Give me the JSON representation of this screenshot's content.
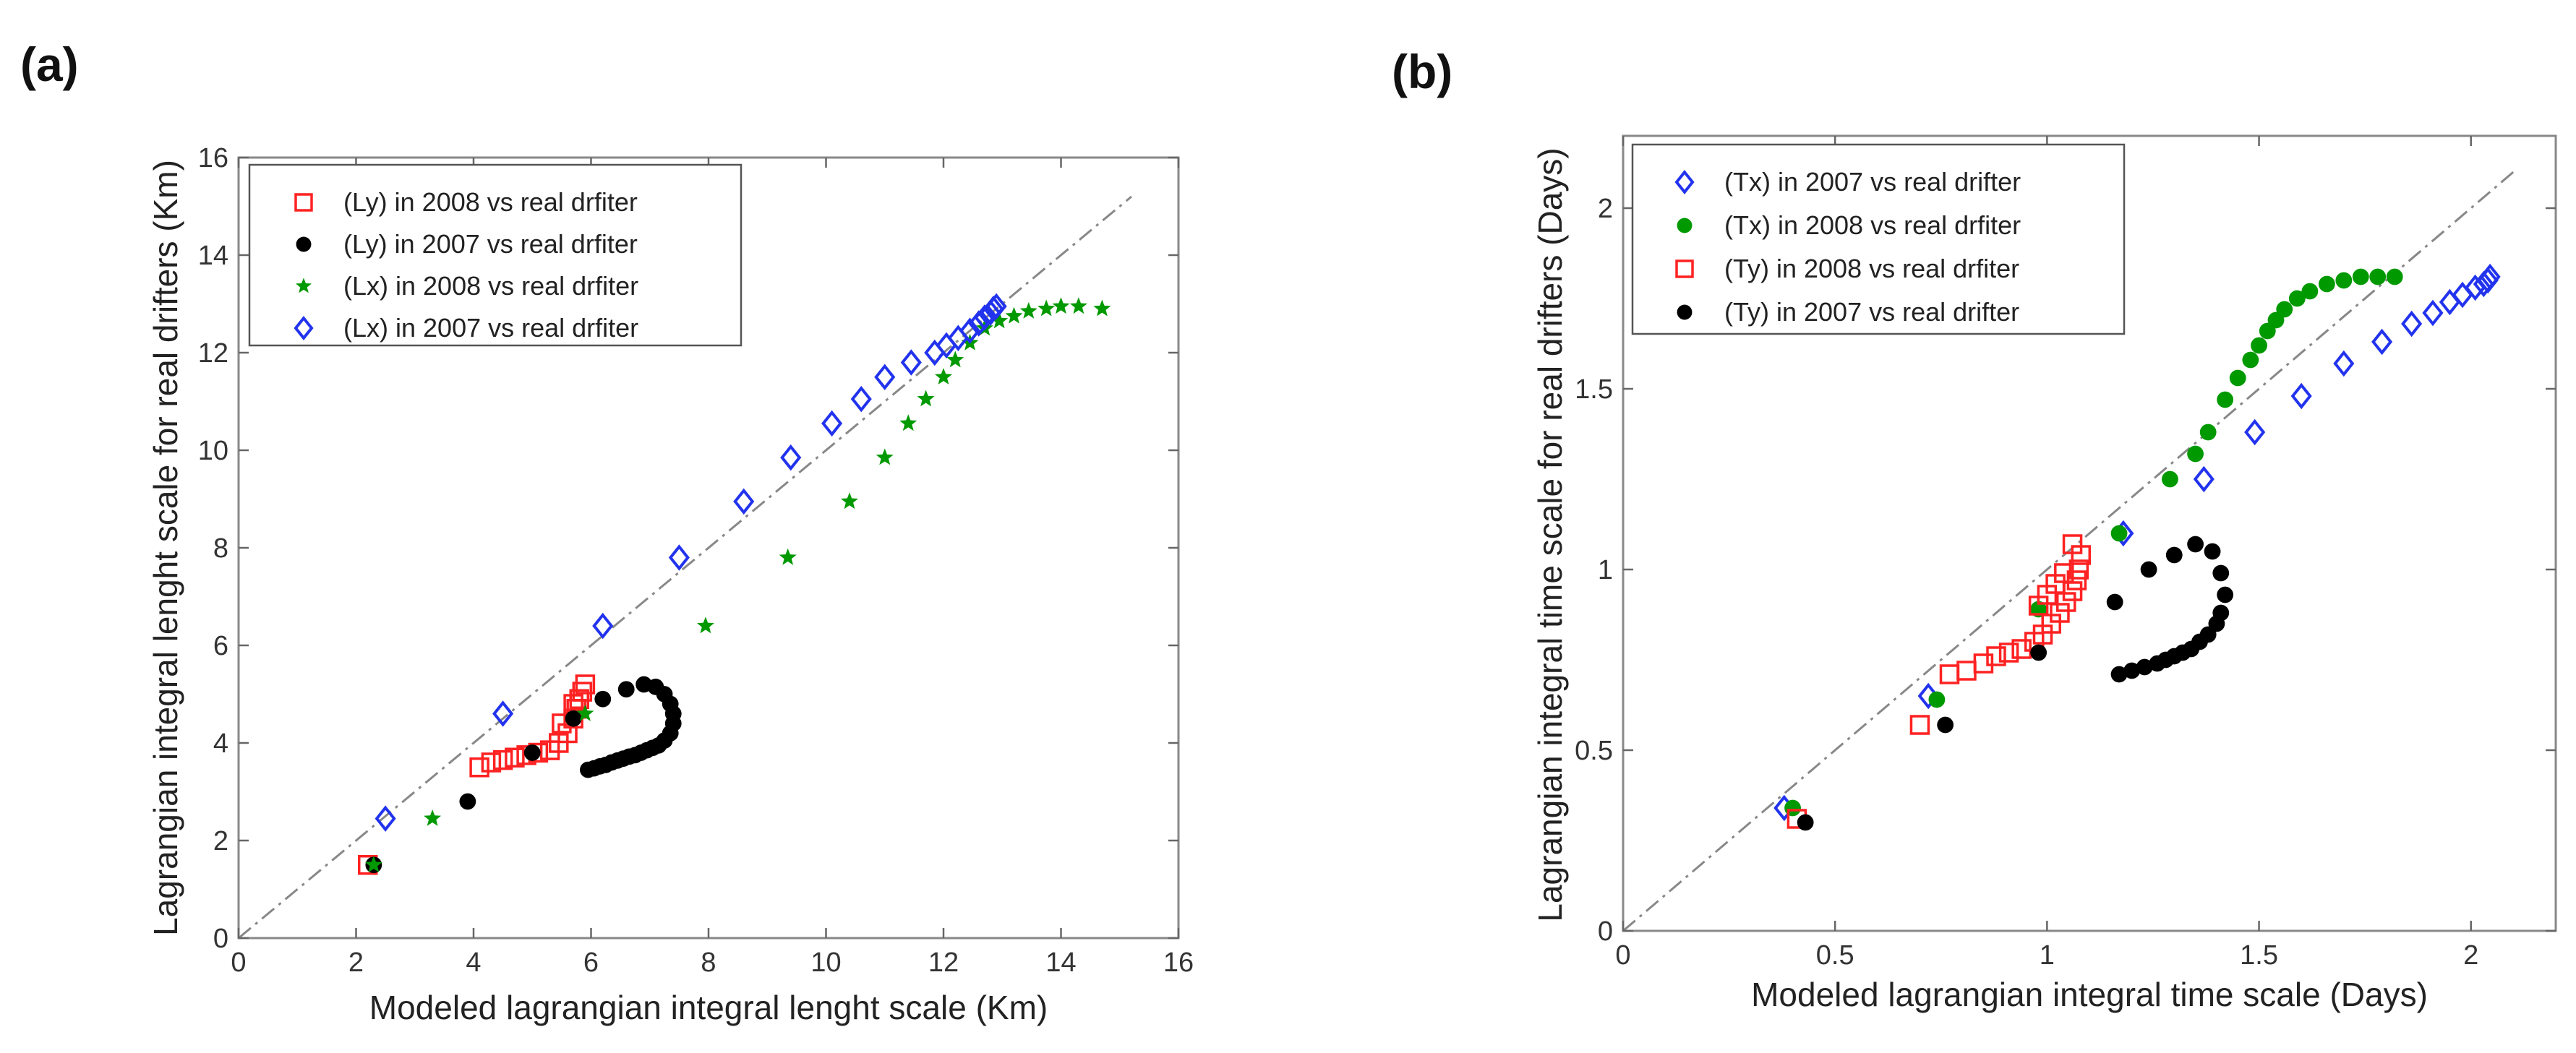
{
  "chart_data": [
    {
      "panel_label": "(a)",
      "type": "scatter",
      "title": "",
      "xlabel": "Modeled lagrangian integral lenght scale (Km)",
      "ylabel": "Lagrangian integral lenght scale for real drifters (Km)",
      "xlim": [
        0,
        16
      ],
      "ylim": [
        0,
        16
      ],
      "xticks": [
        0,
        2,
        4,
        6,
        8,
        10,
        12,
        14,
        16
      ],
      "yticks": [
        0,
        2,
        4,
        6,
        8,
        10,
        12,
        14,
        16
      ],
      "xtick_labels": [
        "0",
        "2",
        "4",
        "6",
        "8",
        "10",
        "12",
        "14",
        "16"
      ],
      "ytick_labels": [
        "0",
        "2",
        "4",
        "6",
        "8",
        "10",
        "12",
        "14",
        "16"
      ],
      "legend_position": "top-left",
      "reference_line": {
        "x": [
          0,
          15.2
        ],
        "y": [
          0,
          15.2
        ],
        "style": "dash-dot",
        "color": "#888888"
      },
      "series": [
        {
          "name": "(Ly) in 2008 vs real drfiter",
          "marker": "square",
          "color": "#ff2222",
          "x": [
            2.2,
            4.1,
            4.3,
            4.5,
            4.7,
            4.9,
            5.1,
            5.3,
            5.45,
            5.6,
            5.7,
            5.75,
            5.8,
            5.85,
            5.9,
            5.5,
            5.7
          ],
          "y": [
            1.5,
            3.5,
            3.6,
            3.65,
            3.7,
            3.75,
            3.8,
            3.85,
            4.0,
            4.2,
            4.5,
            4.7,
            4.9,
            5.05,
            5.2,
            4.4,
            4.8
          ]
        },
        {
          "name": "(Ly) in 2007 vs real drfiter",
          "marker": "circle",
          "color": "#000000",
          "x": [
            2.3,
            3.9,
            5.0,
            5.7,
            6.2,
            6.6,
            6.9,
            7.1,
            7.25,
            7.35,
            7.4,
            7.4,
            7.35,
            7.25,
            7.15,
            7.05,
            6.95,
            6.85,
            6.75,
            6.65,
            6.55,
            6.45,
            6.35,
            6.25,
            6.15,
            6.05,
            5.95
          ],
          "y": [
            1.5,
            2.8,
            3.8,
            4.5,
            4.9,
            5.1,
            5.2,
            5.15,
            5.0,
            4.8,
            4.6,
            4.4,
            4.2,
            4.05,
            3.95,
            3.9,
            3.85,
            3.8,
            3.75,
            3.72,
            3.68,
            3.64,
            3.6,
            3.55,
            3.52,
            3.48,
            3.45
          ]
        },
        {
          "name": "(Lx) in 2008 vs real drfiter",
          "marker": "star",
          "color": "#009900",
          "x": [
            2.3,
            3.3,
            5.9,
            7.95,
            9.35,
            10.4,
            11.0,
            11.4,
            11.7,
            12.0,
            12.2,
            12.45,
            12.7,
            12.95,
            13.2,
            13.45,
            13.75,
            14.0,
            14.3,
            14.7
          ],
          "y": [
            1.5,
            2.45,
            4.6,
            6.4,
            7.8,
            8.95,
            9.85,
            10.55,
            11.05,
            11.5,
            11.85,
            12.2,
            12.5,
            12.65,
            12.75,
            12.85,
            12.9,
            12.95,
            12.95,
            12.9
          ]
        },
        {
          "name": "(Lx) in 2007 vs real drfiter",
          "marker": "diamond",
          "color": "#2233ee",
          "x": [
            2.5,
            4.5,
            6.2,
            7.5,
            8.6,
            9.4,
            10.1,
            10.6,
            11.0,
            11.45,
            11.85,
            12.05,
            12.25,
            12.45,
            12.6,
            12.7,
            12.8,
            12.85,
            12.9
          ],
          "y": [
            2.45,
            4.6,
            6.4,
            7.8,
            8.95,
            9.85,
            10.55,
            11.05,
            11.5,
            11.8,
            12.0,
            12.15,
            12.3,
            12.45,
            12.6,
            12.72,
            12.82,
            12.9,
            12.95
          ]
        }
      ]
    },
    {
      "panel_label": "(b)",
      "type": "scatter",
      "title": "",
      "xlabel": "Modeled lagrangian integral time scale (Days)",
      "ylabel": "Lagrangian integral time scale for real drifters (Days)",
      "xlim": [
        0,
        2.2
      ],
      "ylim": [
        0,
        2.2
      ],
      "xticks": [
        0,
        0.5,
        1,
        1.5,
        2
      ],
      "yticks": [
        0,
        0.5,
        1,
        1.5,
        2
      ],
      "xtick_labels": [
        "0",
        "0.5",
        "1",
        "1.5",
        "2"
      ],
      "ytick_labels": [
        "0",
        "0.5",
        "1",
        "1.5",
        "2"
      ],
      "legend_position": "top-left",
      "reference_line": {
        "x": [
          0,
          2.1
        ],
        "y": [
          0,
          2.1
        ],
        "style": "dash-dot",
        "color": "#888888"
      },
      "series": [
        {
          "name": "(Tx) in 2007 vs real drifter",
          "marker": "diamond",
          "color": "#2233ee",
          "x": [
            0.38,
            0.72,
            1.18,
            1.37,
            1.49,
            1.6,
            1.7,
            1.79,
            1.86,
            1.91,
            1.95,
            1.98,
            2.01,
            2.03,
            2.04,
            2.045
          ],
          "y": [
            0.34,
            0.65,
            1.1,
            1.25,
            1.38,
            1.48,
            1.57,
            1.63,
            1.68,
            1.71,
            1.74,
            1.76,
            1.78,
            1.79,
            1.8,
            1.81
          ]
        },
        {
          "name": "(Tx) in 2008 vs real drfiter",
          "marker": "circle",
          "color": "#009900",
          "x": [
            0.4,
            0.74,
            0.98,
            1.17,
            1.29,
            1.35,
            1.38,
            1.42,
            1.45,
            1.48,
            1.5,
            1.52,
            1.54,
            1.56,
            1.59,
            1.62,
            1.66,
            1.7,
            1.74,
            1.78,
            1.82
          ],
          "y": [
            0.34,
            0.64,
            0.89,
            1.1,
            1.25,
            1.32,
            1.38,
            1.47,
            1.53,
            1.58,
            1.62,
            1.66,
            1.69,
            1.72,
            1.75,
            1.77,
            1.79,
            1.8,
            1.81,
            1.81,
            1.81
          ]
        },
        {
          "name": "(Ty) in 2008 vs real drfiter",
          "marker": "square",
          "color": "#ff2222",
          "x": [
            0.41,
            0.7,
            0.77,
            0.81,
            0.85,
            0.88,
            0.91,
            0.94,
            0.97,
            0.99,
            1.01,
            1.03,
            1.045,
            1.06,
            1.07,
            1.075,
            1.08,
            0.98,
            1.0,
            1.02,
            1.04,
            1.06
          ],
          "y": [
            0.31,
            0.57,
            0.71,
            0.72,
            0.74,
            0.76,
            0.77,
            0.78,
            0.8,
            0.82,
            0.85,
            0.88,
            0.91,
            0.94,
            0.97,
            1.0,
            1.04,
            0.9,
            0.93,
            0.96,
            0.99,
            1.07
          ]
        },
        {
          "name": "(Ty) in 2007 vs real drifter",
          "marker": "circle",
          "color": "#000000",
          "x": [
            0.43,
            0.76,
            0.98,
            1.16,
            1.24,
            1.3,
            1.35,
            1.39,
            1.41,
            1.42,
            1.41,
            1.4,
            1.38,
            1.36,
            1.34,
            1.32,
            1.3,
            1.28,
            1.26,
            1.23,
            1.2,
            1.17
          ],
          "y": [
            0.3,
            0.57,
            0.77,
            0.91,
            1.0,
            1.04,
            1.07,
            1.05,
            0.99,
            0.93,
            0.88,
            0.85,
            0.82,
            0.8,
            0.78,
            0.77,
            0.76,
            0.75,
            0.74,
            0.73,
            0.72,
            0.71
          ]
        }
      ]
    }
  ]
}
